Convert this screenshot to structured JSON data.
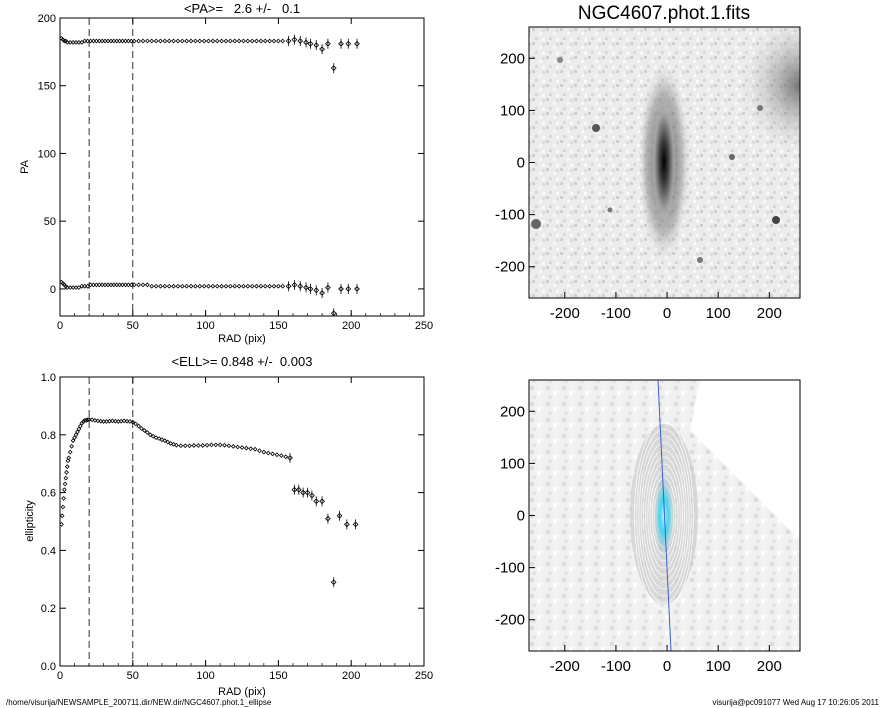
{
  "footer": {
    "left": "/home/visurija/NEWSAMPLE_200711.dir/NEW.dir/NGC4607.phot.1_ellipse",
    "right": "visurija@pc091077  Wed Aug 17 10:26:05 2011"
  },
  "chart_data": [
    {
      "type": "scatter",
      "title": "<PA>=   2.6 +/-   0.1",
      "xlabel": "RAD (pix)",
      "ylabel": "PA",
      "xlim": [
        0,
        250
      ],
      "ylim": [
        -20,
        200
      ],
      "xticks": [
        "0",
        "50",
        "100",
        "150",
        "200",
        "250"
      ],
      "yticks": [
        "0",
        "50",
        "100",
        "150",
        "200"
      ],
      "vlines": [
        20,
        50
      ],
      "series": [
        {
          "points": [
            [
              1,
              185
            ],
            [
              2,
              184
            ],
            [
              3,
              183
            ],
            [
              4,
              183
            ],
            [
              5,
              182
            ],
            [
              7,
              182
            ],
            [
              9,
              182
            ],
            [
              11,
              182
            ],
            [
              13,
              182
            ],
            [
              15,
              182
            ],
            [
              17,
              183
            ],
            [
              19,
              183
            ],
            [
              21,
              183
            ],
            [
              23,
              183
            ],
            [
              25,
              183
            ],
            [
              27,
              183
            ],
            [
              29,
              183
            ],
            [
              31,
              183
            ],
            [
              33,
              183
            ],
            [
              35,
              183
            ],
            [
              37,
              183
            ],
            [
              39,
              183
            ],
            [
              41,
              183
            ],
            [
              43,
              183
            ],
            [
              45,
              183
            ],
            [
              47,
              183
            ],
            [
              49,
              183
            ],
            [
              51,
              183
            ],
            [
              54,
              183
            ],
            [
              57,
              183
            ],
            [
              60,
              183
            ],
            [
              63,
              183
            ],
            [
              66,
              183
            ],
            [
              69,
              183
            ],
            [
              72,
              183
            ],
            [
              75,
              183
            ],
            [
              78,
              183
            ],
            [
              81,
              183
            ],
            [
              84,
              183
            ],
            [
              87,
              183
            ],
            [
              90,
              183
            ],
            [
              93,
              183
            ],
            [
              96,
              183
            ],
            [
              99,
              183
            ],
            [
              102,
              183
            ],
            [
              105,
              183
            ],
            [
              108,
              183
            ],
            [
              111,
              183
            ],
            [
              114,
              183
            ],
            [
              117,
              183
            ],
            [
              120,
              183
            ],
            [
              123,
              183
            ],
            [
              126,
              183
            ],
            [
              129,
              183
            ],
            [
              132,
              183
            ],
            [
              135,
              183
            ],
            [
              138,
              183
            ],
            [
              141,
              183
            ],
            [
              144,
              183
            ],
            [
              147,
              183
            ],
            [
              150,
              183
            ],
            [
              153,
              183
            ],
            [
              157,
              183
            ],
            [
              161,
              184
            ],
            [
              165,
              183
            ],
            [
              169,
              182
            ],
            [
              172,
              181
            ],
            [
              176,
              180
            ],
            [
              180,
              177
            ],
            [
              184,
              181
            ],
            [
              188,
              163
            ],
            [
              193,
              181
            ],
            [
              198,
              181
            ],
            [
              204,
              181
            ]
          ]
        },
        {
          "points": [
            [
              1,
              5
            ],
            [
              2,
              4
            ],
            [
              3,
              3
            ],
            [
              4,
              2
            ],
            [
              5,
              1
            ],
            [
              7,
              1
            ],
            [
              9,
              1
            ],
            [
              11,
              1
            ],
            [
              13,
              1
            ],
            [
              15,
              2
            ],
            [
              17,
              2
            ],
            [
              19,
              2
            ],
            [
              21,
              3
            ],
            [
              23,
              3
            ],
            [
              25,
              3
            ],
            [
              27,
              3
            ],
            [
              29,
              3
            ],
            [
              31,
              3
            ],
            [
              33,
              3
            ],
            [
              35,
              3
            ],
            [
              37,
              3
            ],
            [
              39,
              3
            ],
            [
              41,
              3
            ],
            [
              43,
              3
            ],
            [
              45,
              3
            ],
            [
              47,
              3
            ],
            [
              49,
              3
            ],
            [
              51,
              3
            ],
            [
              54,
              3
            ],
            [
              57,
              3
            ],
            [
              60,
              3
            ],
            [
              63,
              2
            ],
            [
              66,
              2
            ],
            [
              69,
              2
            ],
            [
              72,
              2
            ],
            [
              75,
              2
            ],
            [
              78,
              2
            ],
            [
              81,
              2
            ],
            [
              84,
              2
            ],
            [
              87,
              2
            ],
            [
              90,
              2
            ],
            [
              93,
              2
            ],
            [
              96,
              2
            ],
            [
              99,
              2
            ],
            [
              102,
              2
            ],
            [
              105,
              2
            ],
            [
              108,
              2
            ],
            [
              111,
              2
            ],
            [
              114,
              2
            ],
            [
              117,
              2
            ],
            [
              120,
              2
            ],
            [
              123,
              2
            ],
            [
              126,
              2
            ],
            [
              129,
              2
            ],
            [
              132,
              2
            ],
            [
              135,
              2
            ],
            [
              138,
              2
            ],
            [
              141,
              2
            ],
            [
              144,
              2
            ],
            [
              147,
              2
            ],
            [
              150,
              2
            ],
            [
              153,
              2
            ],
            [
              157,
              2
            ],
            [
              161,
              3
            ],
            [
              165,
              2
            ],
            [
              169,
              1
            ],
            [
              172,
              0
            ],
            [
              176,
              -1
            ],
            [
              180,
              -3
            ],
            [
              184,
              1
            ],
            [
              188,
              -18
            ],
            [
              193,
              0
            ],
            [
              198,
              0
            ],
            [
              204,
              0
            ]
          ]
        }
      ]
    },
    {
      "type": "scatter",
      "title": "<ELL>= 0.848 +/-  0.003",
      "xlabel": "RAD (pix)",
      "ylabel": "ellipticity",
      "xlim": [
        0,
        250
      ],
      "ylim": [
        0.0,
        1.0
      ],
      "xticks": [
        "0",
        "50",
        "100",
        "150",
        "200",
        "250"
      ],
      "yticks": [
        "0.0",
        "0.2",
        "0.4",
        "0.6",
        "0.8",
        "1.0"
      ],
      "vlines": [
        20,
        50
      ],
      "series": [
        {
          "points": [
            [
              1,
              0.49
            ],
            [
              1.5,
              0.52
            ],
            [
              2,
              0.55
            ],
            [
              2.5,
              0.58
            ],
            [
              3,
              0.61
            ],
            [
              3.5,
              0.63
            ],
            [
              4,
              0.65
            ],
            [
              4.5,
              0.67
            ],
            [
              5,
              0.69
            ],
            [
              5.5,
              0.71
            ],
            [
              6,
              0.72
            ],
            [
              7,
              0.74
            ],
            [
              8,
              0.76
            ],
            [
              9,
              0.78
            ],
            [
              10,
              0.79
            ],
            [
              11,
              0.8
            ],
            [
              12,
              0.81
            ],
            [
              13,
              0.82
            ],
            [
              14,
              0.83
            ],
            [
              15,
              0.84
            ],
            [
              16,
              0.845
            ],
            [
              17,
              0.85
            ],
            [
              18,
              0.85
            ],
            [
              19,
              0.852
            ],
            [
              20,
              0.853
            ],
            [
              22,
              0.852
            ],
            [
              24,
              0.85
            ],
            [
              26,
              0.848
            ],
            [
              28,
              0.847
            ],
            [
              30,
              0.846
            ],
            [
              32,
              0.846
            ],
            [
              34,
              0.847
            ],
            [
              36,
              0.848
            ],
            [
              38,
              0.847
            ],
            [
              40,
              0.846
            ],
            [
              42,
              0.847
            ],
            [
              44,
              0.848
            ],
            [
              46,
              0.847
            ],
            [
              48,
              0.846
            ],
            [
              50,
              0.844
            ],
            [
              52,
              0.838
            ],
            [
              54,
              0.83
            ],
            [
              56,
              0.822
            ],
            [
              58,
              0.815
            ],
            [
              60,
              0.808
            ],
            [
              62,
              0.8
            ],
            [
              64,
              0.795
            ],
            [
              66,
              0.79
            ],
            [
              68,
              0.787
            ],
            [
              70,
              0.783
            ],
            [
              72,
              0.78
            ],
            [
              74,
              0.775
            ],
            [
              76,
              0.77
            ],
            [
              78,
              0.767
            ],
            [
              80,
              0.764
            ],
            [
              83,
              0.762
            ],
            [
              86,
              0.762
            ],
            [
              89,
              0.762
            ],
            [
              92,
              0.763
            ],
            [
              95,
              0.763
            ],
            [
              98,
              0.763
            ],
            [
              101,
              0.764
            ],
            [
              104,
              0.765
            ],
            [
              107,
              0.765
            ],
            [
              110,
              0.765
            ],
            [
              113,
              0.764
            ],
            [
              116,
              0.762
            ],
            [
              119,
              0.76
            ],
            [
              122,
              0.758
            ],
            [
              125,
              0.756
            ],
            [
              128,
              0.754
            ],
            [
              131,
              0.752
            ],
            [
              134,
              0.75
            ],
            [
              137,
              0.745
            ],
            [
              140,
              0.74
            ],
            [
              143,
              0.737
            ],
            [
              146,
              0.734
            ],
            [
              149,
              0.731
            ],
            [
              152,
              0.728
            ],
            [
              155,
              0.724
            ],
            [
              158,
              0.72
            ],
            [
              161,
              0.61
            ],
            [
              164,
              0.61
            ],
            [
              167,
              0.6
            ],
            [
              170,
              0.6
            ],
            [
              173,
              0.59
            ],
            [
              176,
              0.57
            ],
            [
              180,
              0.57
            ],
            [
              184,
              0.51
            ],
            [
              188,
              0.29
            ],
            [
              192,
              0.52
            ],
            [
              197,
              0.49
            ],
            [
              203,
              0.49
            ]
          ]
        }
      ]
    },
    {
      "type": "heatmap",
      "title": "NGC4607.phot.1.fits",
      "xlim": [
        -270,
        260
      ],
      "ylim": [
        -260,
        260
      ],
      "xticks": [
        "-200",
        "-100",
        "0",
        "100",
        "200"
      ],
      "yticks": [
        "-200",
        "-100",
        "0",
        "100",
        "200"
      ],
      "colormap": "grayscale"
    },
    {
      "type": "heatmap",
      "title": "",
      "xlim": [
        -270,
        260
      ],
      "ylim": [
        -260,
        260
      ],
      "xticks": [
        "-200",
        "-100",
        "0",
        "100",
        "200"
      ],
      "yticks": [
        "-200",
        "-100",
        "0",
        "100",
        "200"
      ],
      "colormap": "grayscale with cyan core and white isophote contours",
      "overlay_colors": [
        "#3dd6f5",
        "#3f5fd0"
      ]
    }
  ]
}
